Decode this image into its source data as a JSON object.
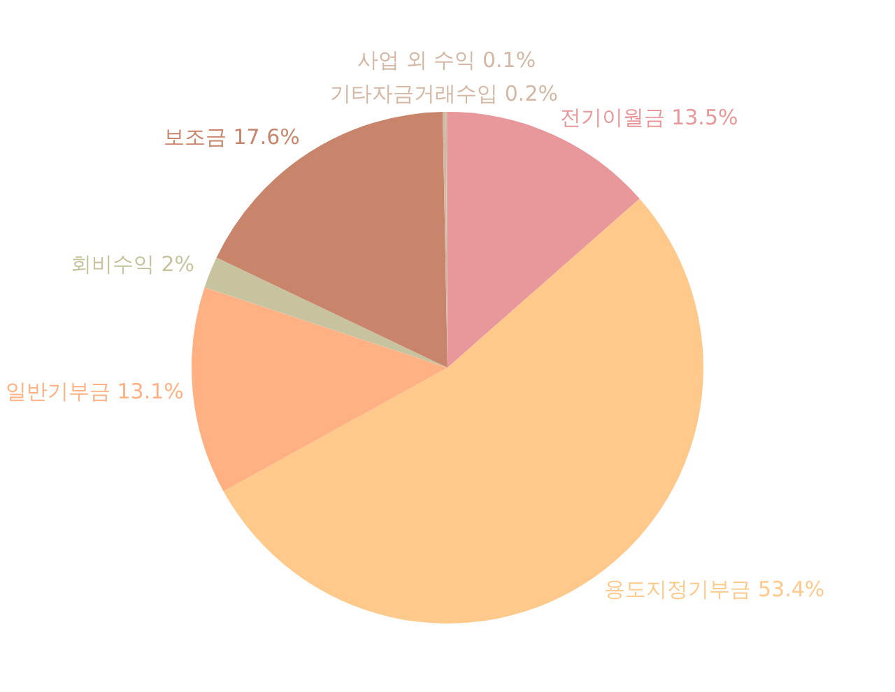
{
  "chart_data": {
    "type": "pie",
    "categories": [
      "전기이월금",
      "용도지정기부금",
      "일반기부금",
      "회비수익",
      "보조금",
      "기타자금거래수입",
      "사업 외 수익"
    ],
    "values": [
      13.5,
      53.4,
      13.1,
      2,
      17.6,
      0.2,
      0.1
    ],
    "value_labels": [
      "13.5%",
      "53.4%",
      "13.1%",
      "2%",
      "17.6%",
      "0.2%",
      "0.1%"
    ],
    "colors": [
      "#e8979a",
      "#ffc98b",
      "#ffb183",
      "#c8c39f",
      "#c8856c",
      "#d4b8a6",
      "#d4b8a6"
    ],
    "legend": false
  }
}
